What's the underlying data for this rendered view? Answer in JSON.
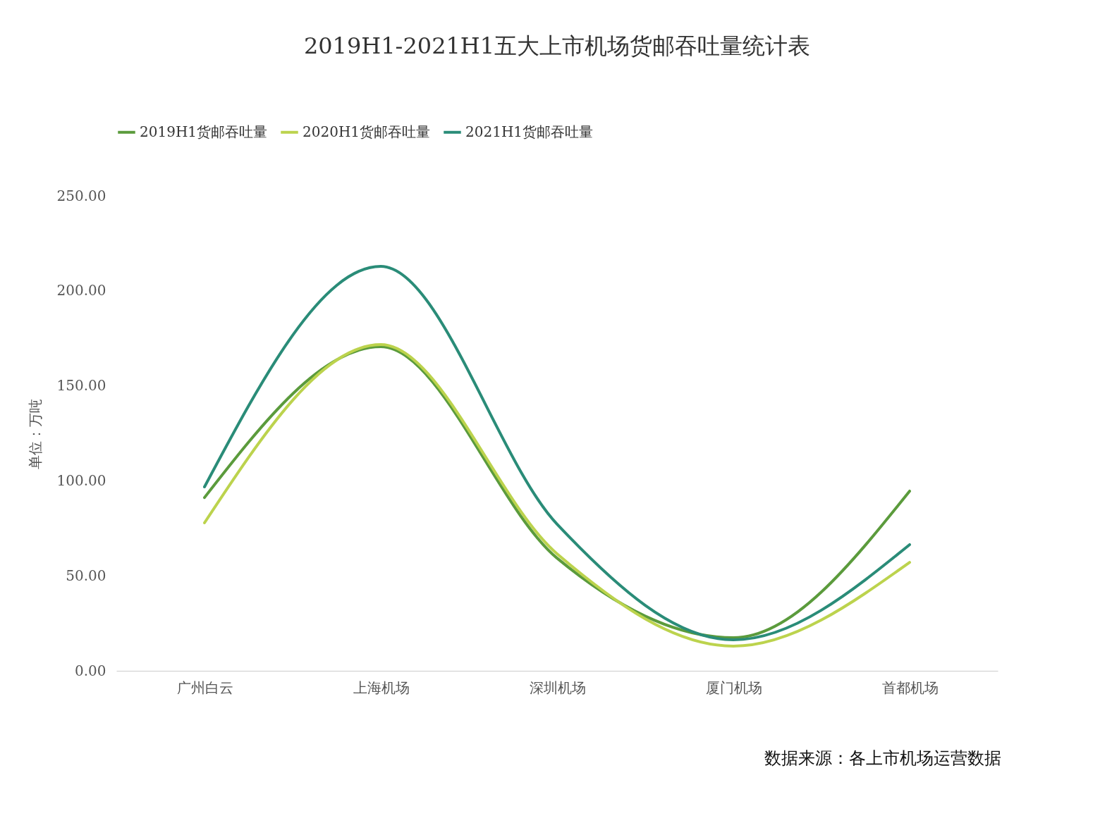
{
  "chart_data": {
    "type": "line",
    "title": "2019H1-2021H1五大上市机场货邮吞吐量统计表",
    "ylabel": "单位：万吨",
    "categories": [
      "广州白云",
      "上海机场",
      "深圳机场",
      "厦门机场",
      "首都机场"
    ],
    "series": [
      {
        "name": "2019H1货邮吞吐量",
        "color": "#5b9b3c",
        "values": [
          91.2,
          170.6,
          59.3,
          17.4,
          94.6
        ]
      },
      {
        "name": "2020H1货邮吞吐量",
        "color": "#bcd34d",
        "values": [
          77.9,
          171.7,
          61.6,
          13.0,
          57.1
        ]
      },
      {
        "name": "2021H1货邮吞吐量",
        "color": "#2a8c78",
        "values": [
          96.8,
          212.9,
          77.2,
          16.3,
          66.4
        ]
      }
    ],
    "ylim": [
      0,
      250
    ],
    "yticks": [
      {
        "value": 0,
        "label": "0.00"
      },
      {
        "value": 50,
        "label": "50.00"
      },
      {
        "value": 100,
        "label": "100.00"
      },
      {
        "value": 150,
        "label": "150.00"
      },
      {
        "value": 200,
        "label": "200.00"
      },
      {
        "value": 250,
        "label": "250.00"
      }
    ],
    "legend": "top left",
    "grid": false,
    "annotations": [
      "数据来源：各上市机场运营数据"
    ]
  }
}
